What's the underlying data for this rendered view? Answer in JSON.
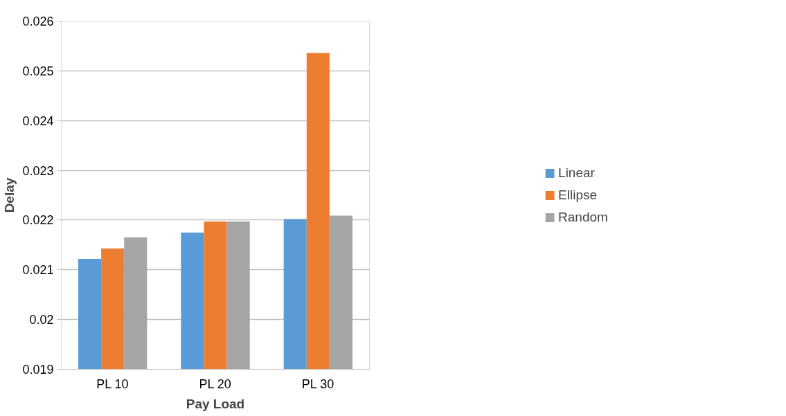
{
  "chart_data": {
    "type": "bar",
    "xlabel": "Pay Load",
    "ylabel": "Delay",
    "categories": [
      "PL 10",
      "PL 20",
      "PL 30"
    ],
    "series": [
      {
        "name": "Linear",
        "color": "#5b9bd5",
        "values": [
          0.02122,
          0.02175,
          0.02202
        ]
      },
      {
        "name": "Ellipse",
        "color": "#ed7d31",
        "values": [
          0.02143,
          0.02197,
          0.02536
        ]
      },
      {
        "name": "Random",
        "color": "#a5a5a5",
        "values": [
          0.02165,
          0.02197,
          0.02209
        ]
      }
    ],
    "ylim": [
      0.019,
      0.026
    ],
    "yticks": [
      {
        "value": 0.019,
        "label": "0.019"
      },
      {
        "value": 0.02,
        "label": "0.02"
      },
      {
        "value": 0.021,
        "label": "0.021"
      },
      {
        "value": 0.022,
        "label": "0.022"
      },
      {
        "value": 0.023,
        "label": "0.023"
      },
      {
        "value": 0.024,
        "label": "0.024"
      },
      {
        "value": 0.025,
        "label": "0.025"
      },
      {
        "value": 0.026,
        "label": "0.026"
      }
    ],
    "grid": "y",
    "legend": "right"
  }
}
